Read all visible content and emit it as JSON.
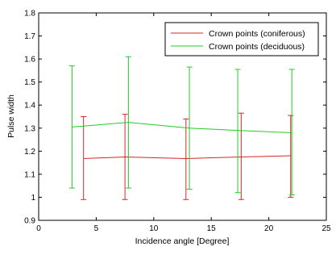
{
  "chart_data": {
    "type": "line",
    "xlabel": "Incidence angle [Degree]",
    "ylabel": "Pulse width",
    "xlim": [
      0,
      25
    ],
    "ylim": [
      0.9,
      1.8
    ],
    "x_ticks": [
      "0",
      "5",
      "10",
      "15",
      "20",
      "25"
    ],
    "y_ticks": [
      "0.9",
      "1",
      "1.1",
      "1.2",
      "1.3",
      "1.4",
      "1.5",
      "1.6",
      "1.7",
      "1.8"
    ],
    "grid": false,
    "legend_position": "top-right",
    "series": [
      {
        "name": "Crown points (coniferous)",
        "color": "#d62728",
        "x": [
          3.9,
          7.5,
          12.8,
          17.6,
          21.9
        ],
        "y": [
          1.168,
          1.175,
          1.168,
          1.175,
          1.18
        ],
        "err_low": [
          0.99,
          0.99,
          0.99,
          0.99,
          1.0
        ],
        "err_high": [
          1.35,
          1.36,
          1.34,
          1.365,
          1.355
        ]
      },
      {
        "name": "Crown points (deciduous)",
        "color": "#22cc22",
        "x": [
          2.9,
          7.8,
          13.1,
          17.3,
          22.0
        ],
        "y": [
          1.305,
          1.325,
          1.3,
          1.29,
          1.28
        ],
        "err_low": [
          1.04,
          1.04,
          1.035,
          1.02,
          1.01
        ],
        "err_high": [
          1.57,
          1.61,
          1.565,
          1.555,
          1.555
        ]
      }
    ]
  }
}
